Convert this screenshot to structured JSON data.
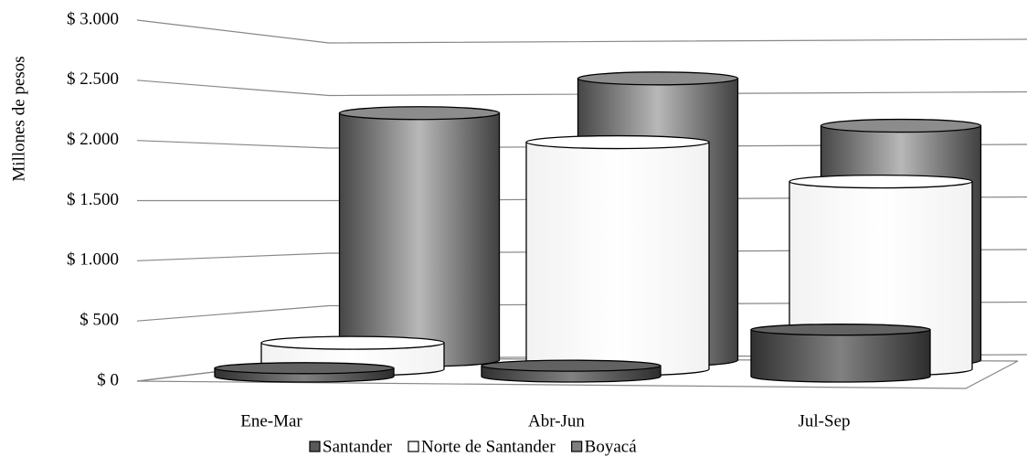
{
  "chart_data": {
    "type": "bar3d-cylinder",
    "y_label": "Millones de pesos",
    "categories": [
      "Ene-Mar",
      "Abr-Jun",
      "Jul-Sep"
    ],
    "series": [
      {
        "name": "Santander",
        "color": "#595959",
        "values": [
          70,
          90,
          390
        ]
      },
      {
        "name": "Norte de Santander",
        "color": "#ffffff",
        "values": [
          235,
          2020,
          1670
        ]
      },
      {
        "name": "Boyacá",
        "color": "#7f7f7f",
        "values": [
          2350,
          2680,
          2230
        ]
      }
    ],
    "ylim": [
      0,
      3000
    ],
    "yticks": [
      {
        "value": 0,
        "label": "$ 0"
      },
      {
        "value": 500,
        "label": "$ 500"
      },
      {
        "value": 1000,
        "label": "$ 1.000"
      },
      {
        "value": 1500,
        "label": "$ 1.500"
      },
      {
        "value": 2000,
        "label": "$ 2.000"
      },
      {
        "value": 2500,
        "label": "$ 2.500"
      },
      {
        "value": 3000,
        "label": "$ 3.000"
      }
    ],
    "grid": true
  }
}
